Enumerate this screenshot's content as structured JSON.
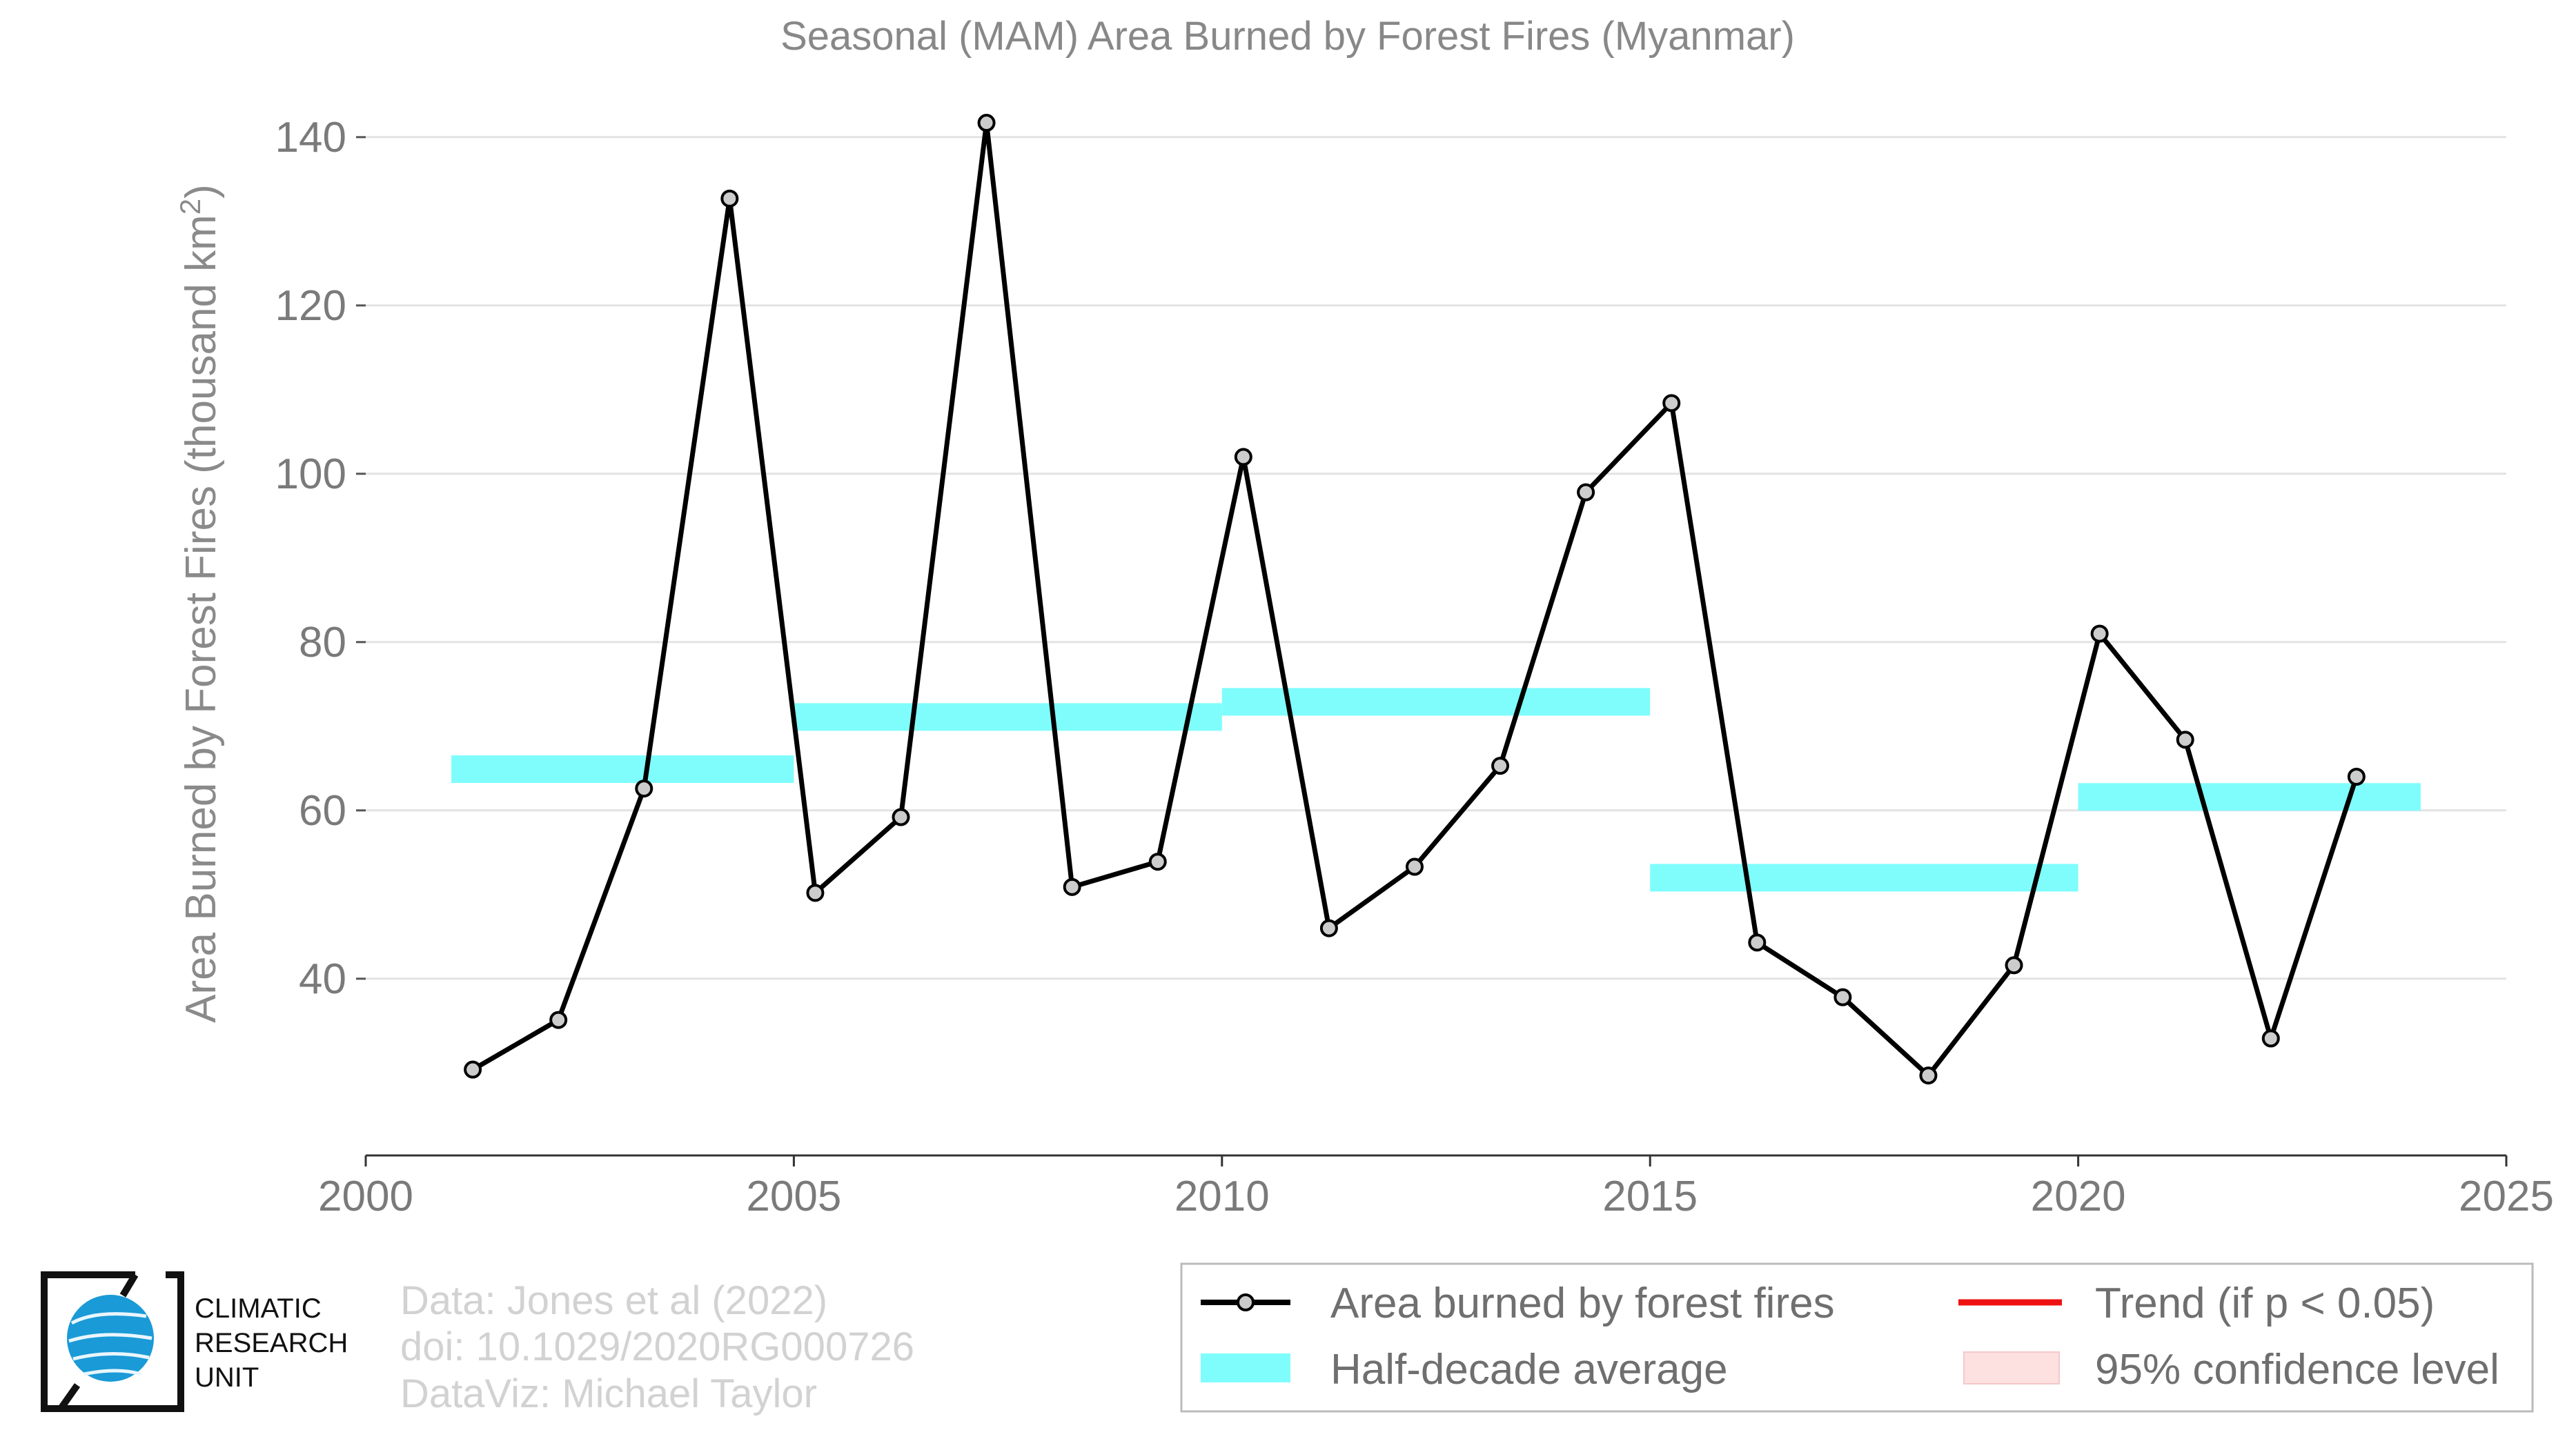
{
  "chart_data": {
    "type": "line",
    "title": "Seasonal (MAM) Area Burned by Forest Fires (Myanmar)",
    "ylabel_prefix": "Area Burned by Forest Fires (thousand km",
    "ylabel_sup": "2",
    "ylabel_suffix": ")",
    "xlabel": "",
    "xlim": [
      2000,
      2025
    ],
    "ylim": [
      19,
      144
    ],
    "xticks": [
      2000,
      2005,
      2010,
      2015,
      2020,
      2025
    ],
    "yticks": [
      40,
      60,
      80,
      100,
      120,
      140
    ],
    "grid": "horizontal",
    "series": [
      {
        "name": "Area burned by forest fires",
        "color": "#000000",
        "marker_fill": "#cccccc",
        "x": [
          2001.25,
          2002.25,
          2003.25,
          2004.25,
          2005.25,
          2006.25,
          2007.25,
          2008.25,
          2009.25,
          2010.25,
          2011.25,
          2012.25,
          2013.25,
          2014.25,
          2015.25,
          2016.25,
          2017.25,
          2018.25,
          2019.25,
          2020.25,
          2021.25,
          2022.25,
          2023.25
        ],
        "y": [
          29.2,
          35.1,
          62.6,
          132.7,
          50.2,
          59.2,
          141.7,
          50.9,
          53.9,
          102.0,
          46.0,
          53.3,
          65.3,
          97.8,
          108.4,
          44.3,
          37.8,
          28.5,
          41.6,
          81.0,
          68.4,
          32.9,
          64.0
        ]
      }
    ],
    "half_decade_average": {
      "name": "Half-decade average",
      "color": "#7ffdfd",
      "segments": [
        {
          "x0": 2001,
          "x1": 2005,
          "y": 64.9
        },
        {
          "x0": 2005,
          "x1": 2010,
          "y": 71.1
        },
        {
          "x0": 2010,
          "x1": 2015,
          "y": 72.9
        },
        {
          "x0": 2015,
          "x1": 2020,
          "y": 52.0
        },
        {
          "x0": 2020,
          "x1": 2024,
          "y": 61.6
        }
      ]
    },
    "legend": {
      "position": "bottom-right",
      "entries": [
        {
          "label": "Area burned by forest fires",
          "kind": "line-marker",
          "color": "#000000"
        },
        {
          "label": "Half-decade average",
          "kind": "band",
          "color": "#7ffdfd"
        },
        {
          "label": "Trend (if p < 0.05)",
          "kind": "line",
          "color": "#ee1111"
        },
        {
          "label": "95% confidence level",
          "kind": "patch",
          "color": "#fde0e0"
        }
      ]
    }
  },
  "credits": {
    "line1": "Data: Jones et al (2022)",
    "line2": "doi: 10.1029/2020RG000726",
    "line3": "DataViz: Michael Taylor"
  },
  "logo": {
    "line1": "CLIMATIC",
    "line2": "RESEARCH",
    "line3": "UNIT",
    "globe_color": "#1a9ad6"
  }
}
